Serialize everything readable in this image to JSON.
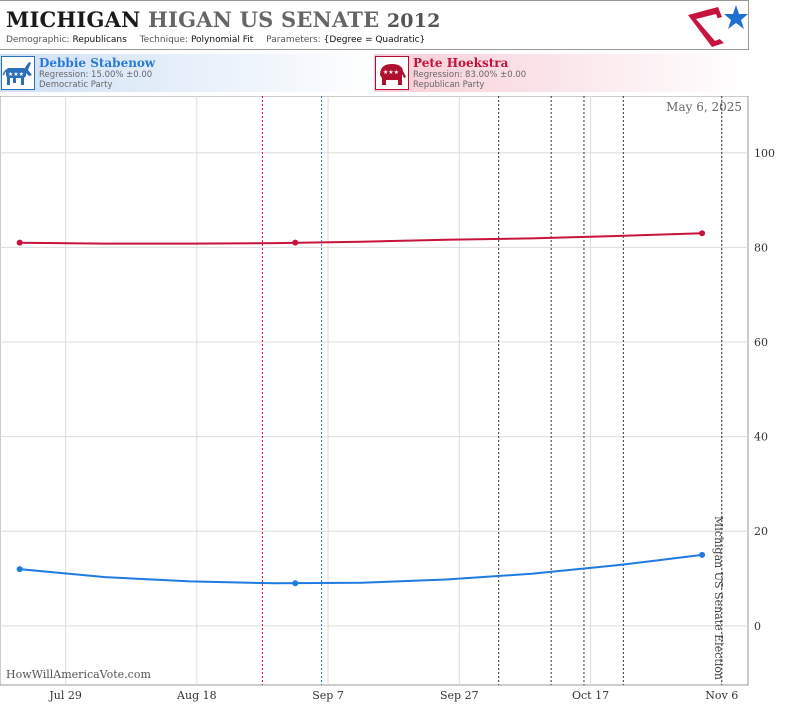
{
  "header": {
    "state": "MICHIGAN",
    "race": "HIGAN US SENATE",
    "year": "2012",
    "demographic_label": "Demographic:",
    "demographic": "Republicans",
    "technique_label": "Technique:",
    "technique": "Polynomial Fit",
    "parameters_label": "Parameters:",
    "parameters": "{Degree = Quadratic}"
  },
  "candidates": {
    "dem": {
      "name": "Debbie Stabenow",
      "regression": "Regression: 15.00% ±0.00",
      "party": "Democratic Party",
      "color": "#1f7be0"
    },
    "rep": {
      "name": "Pete Hoekstra",
      "regression": "Regression: 83.00% ±0.00",
      "party": "Republican Party",
      "color": "#c8143c"
    }
  },
  "watermark": "HowWillAmericaVote.com",
  "chart_data": {
    "type": "line",
    "date_label": "May 6, 2025",
    "event_label": "Michigan US Senate Election",
    "x_ticks": [
      "Jul 29",
      "Aug 18",
      "Sep 7",
      "Sep 27",
      "Oct 17",
      "Nov 6"
    ],
    "x_tick_dates": [
      "2012-07-29",
      "2012-08-18",
      "2012-09-07",
      "2012-09-27",
      "2012-10-17",
      "2012-11-06"
    ],
    "x_range": [
      "2012-07-19",
      "2012-11-10"
    ],
    "y_ticks": [
      0,
      20,
      40,
      60,
      80,
      100
    ],
    "ylim": [
      -12.5,
      112
    ],
    "grid": true,
    "series": [
      {
        "name": "Pete Hoekstra",
        "color": "#c8143c",
        "x": [
          "2012-07-22",
          "2012-08-04",
          "2012-08-17",
          "2012-08-30",
          "2012-09-12",
          "2012-09-25",
          "2012-10-08",
          "2012-10-21",
          "2012-11-03"
        ],
        "values": [
          81.0,
          80.8,
          80.8,
          80.9,
          81.2,
          81.6,
          81.9,
          82.4,
          83.0
        ],
        "markers": [
          {
            "x": "2012-07-22",
            "y": 81.0
          },
          {
            "x": "2012-09-02",
            "y": 81.0
          },
          {
            "x": "2012-11-03",
            "y": 83.0
          }
        ]
      },
      {
        "name": "Debbie Stabenow",
        "color": "#1f7be0",
        "x": [
          "2012-07-22",
          "2012-08-04",
          "2012-08-17",
          "2012-08-30",
          "2012-09-12",
          "2012-09-25",
          "2012-10-08",
          "2012-10-21",
          "2012-11-03"
        ],
        "values": [
          12.0,
          10.3,
          9.4,
          9.0,
          9.1,
          9.8,
          11.0,
          12.8,
          15.0
        ],
        "markers": [
          {
            "x": "2012-07-22",
            "y": 12.0
          },
          {
            "x": "2012-09-02",
            "y": 9.0
          },
          {
            "x": "2012-11-03",
            "y": 15.0
          }
        ]
      }
    ],
    "vlines": [
      {
        "x": "2012-08-28",
        "color": "#c8143c"
      },
      {
        "x": "2012-09-06",
        "color": "#1f7be0"
      },
      {
        "x": "2012-10-03",
        "color": "#333333"
      },
      {
        "x": "2012-10-11",
        "color": "#333333"
      },
      {
        "x": "2012-10-16",
        "color": "#333333"
      },
      {
        "x": "2012-10-22",
        "color": "#333333"
      },
      {
        "x": "2012-11-06",
        "color": "#333333"
      }
    ]
  }
}
